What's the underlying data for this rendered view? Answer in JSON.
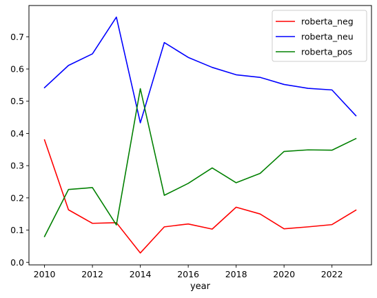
{
  "chart_data": {
    "type": "line",
    "title": "",
    "xlabel": "year",
    "ylabel": "",
    "x": [
      2010,
      2011,
      2012,
      2013,
      2014,
      2015,
      2016,
      2017,
      2018,
      2019,
      2020,
      2021,
      2022,
      2023
    ],
    "xlim": [
      2009.35,
      2023.65
    ],
    "ylim": [
      -0.008,
      0.797
    ],
    "xticks": [
      2010,
      2012,
      2014,
      2016,
      2018,
      2020,
      2022
    ],
    "yticks": [
      0.0,
      0.1,
      0.2,
      0.3,
      0.4,
      0.5,
      0.6,
      0.7
    ],
    "ytick_labels": [
      "0.0",
      "0.1",
      "0.2",
      "0.3",
      "0.4",
      "0.5",
      "0.6",
      "0.7"
    ],
    "xtick_labels": [
      "2010",
      "2012",
      "2014",
      "2016",
      "2018",
      "2020",
      "2022"
    ],
    "grid": false,
    "legend_position": "top-right",
    "series": [
      {
        "name": "roberta_neg",
        "color": "#ff0000",
        "values": [
          0.38,
          0.163,
          0.121,
          0.123,
          0.029,
          0.11,
          0.119,
          0.103,
          0.171,
          0.15,
          0.104,
          0.11,
          0.117,
          0.162
        ]
      },
      {
        "name": "roberta_neu",
        "color": "#0000ff",
        "values": [
          0.542,
          0.611,
          0.647,
          0.761,
          0.433,
          0.682,
          0.636,
          0.605,
          0.582,
          0.574,
          0.552,
          0.54,
          0.535,
          0.455
        ]
      },
      {
        "name": "roberta_pos",
        "color": "#008000",
        "values": [
          0.08,
          0.226,
          0.232,
          0.116,
          0.539,
          0.208,
          0.245,
          0.293,
          0.247,
          0.276,
          0.344,
          0.349,
          0.348,
          0.384
        ]
      }
    ]
  }
}
